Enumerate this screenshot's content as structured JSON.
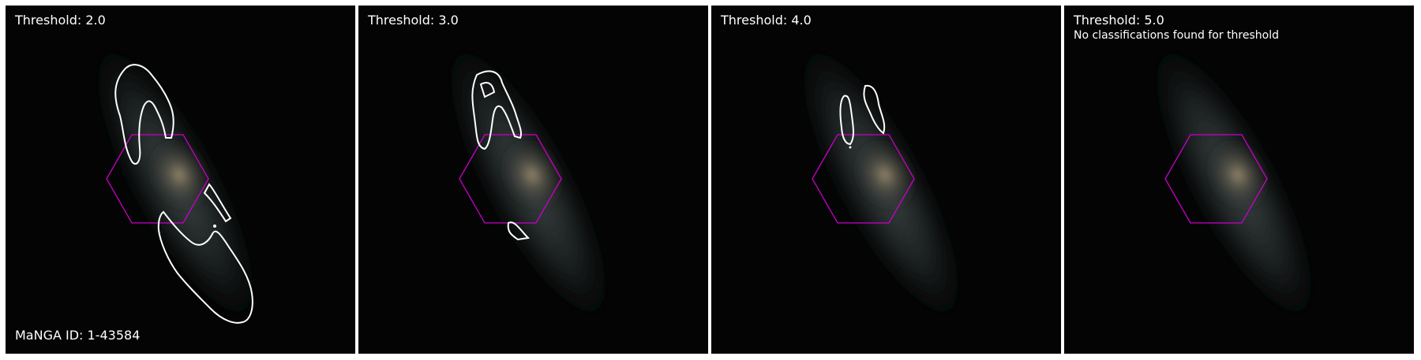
{
  "colors": {
    "contour": "#ffffff",
    "hexagon": "#c800c8",
    "background": "#040404"
  },
  "panels": [
    {
      "threshold_label": "Threshold: 2.0",
      "note": "",
      "id_label": "MaNGA ID: 1-43584"
    },
    {
      "threshold_label": "Threshold: 3.0",
      "note": "",
      "id_label": ""
    },
    {
      "threshold_label": "Threshold: 4.0",
      "note": "",
      "id_label": ""
    },
    {
      "threshold_label": "Threshold: 5.0",
      "note": "No classifications found for threshold",
      "id_label": ""
    }
  ]
}
